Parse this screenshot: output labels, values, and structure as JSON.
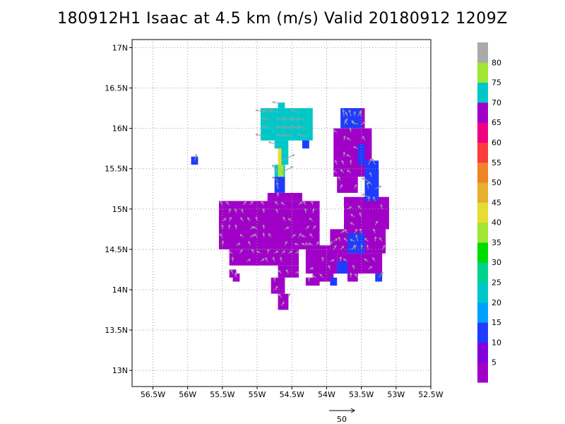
{
  "title": "180912H1 Isaac at 4.5 km (m/s) Valid 20180912  1209Z",
  "colors": {
    "background": "#ffffff",
    "grid": "#9a9a9a",
    "arrow": "#a0a0a0"
  },
  "chart_data": {
    "type": "heatmap",
    "title": "180912H1 Isaac at 4.5 km (m/s) Valid 20180912  1209Z",
    "xlabel": "",
    "ylabel": "",
    "xlim": [
      -56.8,
      -52.5
    ],
    "ylim": [
      12.8,
      17.1
    ],
    "x_ticks": [
      {
        "value": -56.5,
        "label": "56.5W"
      },
      {
        "value": -56,
        "label": "56W"
      },
      {
        "value": -55.5,
        "label": "55.5W"
      },
      {
        "value": -55,
        "label": "55W"
      },
      {
        "value": -54.5,
        "label": "54.5W"
      },
      {
        "value": -54,
        "label": "54W"
      },
      {
        "value": -53.5,
        "label": "53.5W"
      },
      {
        "value": -53,
        "label": "53W"
      },
      {
        "value": -52.5,
        "label": "52.5W"
      }
    ],
    "y_ticks": [
      {
        "value": 13,
        "label": "13N"
      },
      {
        "value": 13.5,
        "label": "13.5N"
      },
      {
        "value": 14,
        "label": "14N"
      },
      {
        "value": 14.5,
        "label": "14.5N"
      },
      {
        "value": 15,
        "label": "15N"
      },
      {
        "value": 15.5,
        "label": "15.5N"
      },
      {
        "value": 16,
        "label": "16N"
      },
      {
        "value": 16.5,
        "label": "16.5N"
      },
      {
        "value": 17,
        "label": "17N"
      }
    ],
    "grid": true,
    "colorbar": {
      "units": "m/s",
      "placement": "right",
      "levels": [
        0,
        5,
        10,
        15,
        20,
        25,
        30,
        35,
        40,
        45,
        50,
        55,
        60,
        65,
        70,
        75,
        80,
        85
      ],
      "labels": [
        "5",
        "10",
        "15",
        "20",
        "25",
        "30",
        "35",
        "40",
        "45",
        "50",
        "55",
        "60",
        "65",
        "70",
        "75",
        "80"
      ],
      "colors": [
        "#a000c8",
        "#8200dc",
        "#1e3cff",
        "#00a0ff",
        "#00c8c8",
        "#00d28c",
        "#00dc00",
        "#a0e632",
        "#e6dc32",
        "#e6af2d",
        "#f08228",
        "#fa3c3c",
        "#f00082",
        "#a000c8",
        "#00c8c8",
        "#a0e632",
        "#aaaaaa"
      ]
    },
    "cells": [
      {
        "lon_min": -55.55,
        "lon_max": -54.1,
        "lat_min": 14.5,
        "lat_max": 15.1,
        "speed": 3
      },
      {
        "lon_min": -55.4,
        "lon_max": -54.4,
        "lat_min": 14.3,
        "lat_max": 14.5,
        "speed": 3
      },
      {
        "lon_min": -54.85,
        "lon_max": -54.35,
        "lat_min": 15.1,
        "lat_max": 15.2,
        "speed": 3
      },
      {
        "lon_min": -54.3,
        "lon_max": -53.85,
        "lat_min": 14.2,
        "lat_max": 14.55,
        "speed": 3
      },
      {
        "lon_min": -54.7,
        "lon_max": -54.4,
        "lat_min": 14.15,
        "lat_max": 14.3,
        "speed": 3
      },
      {
        "lon_min": -54.2,
        "lon_max": -53.9,
        "lat_min": 14.1,
        "lat_max": 14.2,
        "speed": 4
      },
      {
        "lon_min": -53.95,
        "lon_max": -53.15,
        "lat_min": 14.45,
        "lat_max": 14.75,
        "speed": 4
      },
      {
        "lon_min": -53.75,
        "lon_max": -53.1,
        "lat_min": 14.75,
        "lat_max": 15.15,
        "speed": 4
      },
      {
        "lon_min": -53.85,
        "lon_max": -53.5,
        "lat_min": 14.2,
        "lat_max": 14.45,
        "speed": 4
      },
      {
        "lon_min": -53.55,
        "lon_max": -53.2,
        "lat_min": 14.2,
        "lat_max": 14.45,
        "speed": 4
      },
      {
        "lon_min": -53.9,
        "lon_max": -53.35,
        "lat_min": 15.4,
        "lat_max": 16.0,
        "speed": 4
      },
      {
        "lon_min": -53.85,
        "lon_max": -53.55,
        "lat_min": 15.2,
        "lat_max": 15.4,
        "speed": 4
      },
      {
        "lon_min": -53.75,
        "lon_max": -53.45,
        "lat_min": 16.0,
        "lat_max": 16.25,
        "speed": 4
      },
      {
        "lon_min": -53.4,
        "lon_max": -53.25,
        "lat_min": 15.25,
        "lat_max": 15.5,
        "speed": 4
      },
      {
        "lon_min": -55.4,
        "lon_max": -55.3,
        "lat_min": 14.15,
        "lat_max": 14.25,
        "speed": 4
      },
      {
        "lon_min": -55.35,
        "lon_max": -55.25,
        "lat_min": 14.1,
        "lat_max": 14.2,
        "speed": 4
      },
      {
        "lon_min": -54.8,
        "lon_max": -54.6,
        "lat_min": 13.95,
        "lat_max": 14.15,
        "speed": 4
      },
      {
        "lon_min": -54.7,
        "lon_max": -54.55,
        "lat_min": 13.75,
        "lat_max": 13.95,
        "speed": 4
      },
      {
        "lon_min": -54.3,
        "lon_max": -54.1,
        "lat_min": 14.05,
        "lat_max": 14.15,
        "speed": 4
      },
      {
        "lon_min": -53.7,
        "lon_max": -53.55,
        "lat_min": 14.1,
        "lat_max": 14.2,
        "speed": 4
      },
      {
        "lon_min": -53.35,
        "lon_max": -53.25,
        "lat_min": 15.15,
        "lat_max": 15.3,
        "speed": 4
      },
      {
        "lon_min": -53.95,
        "lon_max": -53.85,
        "lat_min": 14.05,
        "lat_max": 14.15,
        "speed": 12
      },
      {
        "lon_min": -53.8,
        "lon_max": -53.5,
        "lat_min": 16.0,
        "lat_max": 16.25,
        "speed": 12
      },
      {
        "lon_min": -53.45,
        "lon_max": -53.25,
        "lat_min": 15.1,
        "lat_max": 15.6,
        "speed": 12
      },
      {
        "lon_min": -53.7,
        "lon_max": -53.45,
        "lat_min": 14.45,
        "lat_max": 14.7,
        "speed": 12
      },
      {
        "lon_min": -53.85,
        "lon_max": -53.7,
        "lat_min": 14.2,
        "lat_max": 14.35,
        "speed": 12
      },
      {
        "lon_min": -53.3,
        "lon_max": -53.2,
        "lat_min": 14.1,
        "lat_max": 14.2,
        "speed": 12
      },
      {
        "lon_min": -53.55,
        "lon_max": -53.45,
        "lat_min": 15.55,
        "lat_max": 15.8,
        "speed": 12
      },
      {
        "lon_min": -55.95,
        "lon_max": -55.85,
        "lat_min": 15.55,
        "lat_max": 15.65,
        "speed": 12
      },
      {
        "lon_min": -54.75,
        "lon_max": -54.6,
        "lat_min": 15.2,
        "lat_max": 15.4,
        "speed": 12
      },
      {
        "lon_min": -54.75,
        "lon_max": -54.6,
        "lat_min": 15.4,
        "lat_max": 15.55,
        "speed": 24
      },
      {
        "lon_min": -54.7,
        "lon_max": -54.6,
        "lat_min": 15.55,
        "lat_max": 15.75,
        "speed": 42
      },
      {
        "lon_min": -54.75,
        "lon_max": -54.65,
        "lat_min": 15.75,
        "lat_max": 15.85,
        "speed": 24
      },
      {
        "lon_min": -54.7,
        "lon_max": -54.62,
        "lat_min": 15.4,
        "lat_max": 15.55,
        "speed": 38
      },
      {
        "lon_min": -54.95,
        "lon_max": -54.2,
        "lat_min": 15.85,
        "lat_max": 16.25,
        "speed": 20
      },
      {
        "lon_min": -54.65,
        "lon_max": -54.55,
        "lat_min": 15.55,
        "lat_max": 15.85,
        "speed": 20
      },
      {
        "lon_min": -54.7,
        "lon_max": -54.6,
        "lat_min": 16.25,
        "lat_max": 16.32,
        "speed": 22
      },
      {
        "lon_min": -54.35,
        "lon_max": -54.25,
        "lat_min": 15.75,
        "lat_max": 15.85,
        "speed": 14
      }
    ],
    "wind_reference": {
      "label": "50",
      "value": 50,
      "units": "m/s"
    }
  }
}
